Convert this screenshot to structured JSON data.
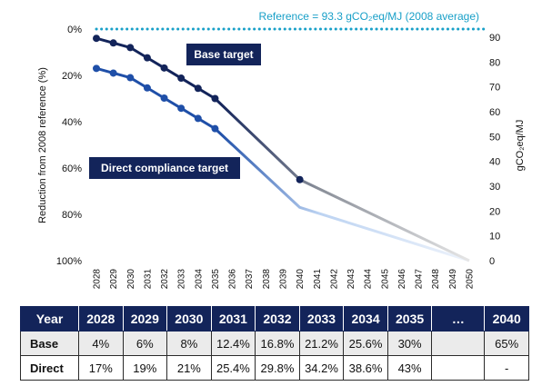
{
  "chart_data": {
    "type": "line",
    "title": "",
    "reference_label": "Reference = 93.3 gCO₂eq/MJ (2008 average)",
    "ylabel_left": "Reduction from 2008 reference (%)",
    "ylabel_right": "gCO₂eq/MJ",
    "xlabel": "",
    "x": [
      2028,
      2029,
      2030,
      2031,
      2032,
      2033,
      2034,
      2035,
      2036,
      2037,
      2038,
      2039,
      2040,
      2041,
      2042,
      2043,
      2044,
      2045,
      2046,
      2047,
      2048,
      2049,
      2050
    ],
    "y_left_ticks": [
      "0%",
      "20%",
      "40%",
      "60%",
      "80%",
      "100%"
    ],
    "y_left_range": [
      0,
      100
    ],
    "y_right_ticks": [
      "0",
      "10",
      "20",
      "30",
      "40",
      "50",
      "60",
      "70",
      "80",
      "90"
    ],
    "y_right_range": [
      0,
      93.3
    ],
    "series": [
      {
        "name": "Base target",
        "color": "#13245a",
        "points": [
          [
            2028,
            4
          ],
          [
            2029,
            6
          ],
          [
            2030,
            8
          ],
          [
            2031,
            12.4
          ],
          [
            2032,
            16.8
          ],
          [
            2033,
            21.2
          ],
          [
            2034,
            25.6
          ],
          [
            2035,
            30
          ],
          [
            2040,
            65
          ],
          [
            2050,
            100
          ]
        ],
        "markers": [
          2028,
          2029,
          2030,
          2031,
          2032,
          2033,
          2034,
          2035,
          2040
        ]
      },
      {
        "name": "Direct compliance target",
        "color": "#1f4fa8",
        "points": [
          [
            2028,
            17
          ],
          [
            2029,
            19
          ],
          [
            2030,
            21
          ],
          [
            2031,
            25.4
          ],
          [
            2032,
            29.8
          ],
          [
            2033,
            34.2
          ],
          [
            2034,
            38.6
          ],
          [
            2035,
            43
          ],
          [
            2040,
            77
          ],
          [
            2050,
            100
          ]
        ],
        "markers": [
          2028,
          2029,
          2030,
          2031,
          2032,
          2033,
          2034,
          2035
        ]
      }
    ],
    "reference_line": {
      "value": 0,
      "style": "dotted",
      "color": "#19a0c8"
    },
    "grid": false,
    "legend": "callout-boxes"
  },
  "table": {
    "headers": [
      "Year",
      "2028",
      "2029",
      "2030",
      "2031",
      "2032",
      "2033",
      "2034",
      "2035",
      "…",
      "2040"
    ],
    "rows": [
      {
        "label": "Base",
        "cells": [
          "4%",
          "6%",
          "8%",
          "12.4%",
          "16.8%",
          "21.2%",
          "25.6%",
          "30%",
          "",
          "65%"
        ]
      },
      {
        "label": "Direct",
        "cells": [
          "17%",
          "19%",
          "21%",
          "25.4%",
          "29.8%",
          "34.2%",
          "38.6%",
          "43%",
          "",
          "-"
        ]
      }
    ]
  }
}
